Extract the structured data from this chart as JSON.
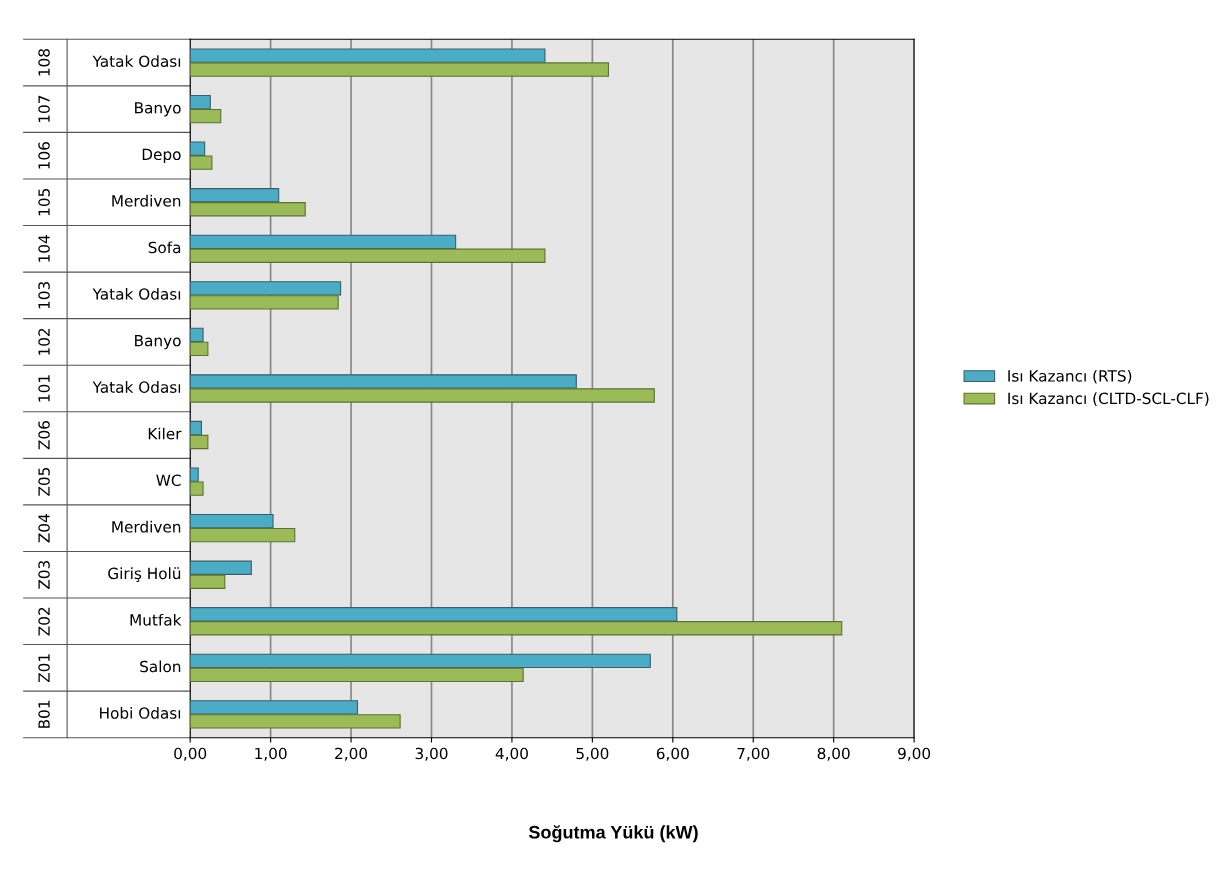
{
  "chart_data": {
    "type": "bar",
    "orientation": "horizontal",
    "xlabel": "Soğutma Yükü (kW)",
    "categories": [
      "108 Yatak Odası",
      "107 Banyo",
      "106 Depo",
      "105 Merdiven",
      "104 Sofa",
      "103 Yatak Odası",
      "102 Banyo",
      "101 Yatak Odası",
      "Z06 Kiler",
      "Z05 WC",
      "Z04 Merdiven",
      "Z03 Giriş Holü",
      "Z02 Mutfak",
      "Z01 Salon",
      "B01 Hobi Odası"
    ],
    "series": [
      {
        "name": "Isı Kazancı (RTS)",
        "color": "#4bacc6",
        "values": [
          4.41,
          0.25,
          0.18,
          1.1,
          3.3,
          1.87,
          0.16,
          4.8,
          0.14,
          0.1,
          1.03,
          0.76,
          6.05,
          5.72,
          2.08
        ]
      },
      {
        "name": "Isı Kazancı (CLTD-SCL-CLF)",
        "color": "#9bbb59",
        "values": [
          5.2,
          0.38,
          0.27,
          1.43,
          4.41,
          1.84,
          0.22,
          5.77,
          0.22,
          0.16,
          1.3,
          0.43,
          8.1,
          4.14,
          2.61
        ]
      }
    ],
    "xlim": [
      0,
      9
    ],
    "xticks": [
      {
        "value": 0,
        "label": "0,00"
      },
      {
        "value": 1,
        "label": "1,00"
      },
      {
        "value": 2,
        "label": "2,00"
      },
      {
        "value": 3,
        "label": "3,00"
      },
      {
        "value": 4,
        "label": "4,00"
      },
      {
        "value": 5,
        "label": "5,00"
      },
      {
        "value": 6,
        "label": "6,00"
      },
      {
        "value": 7,
        "label": "7,00"
      },
      {
        "value": 8,
        "label": "8,00"
      },
      {
        "value": 9,
        "label": "9,00"
      }
    ],
    "grid": "x",
    "legend": "right"
  }
}
